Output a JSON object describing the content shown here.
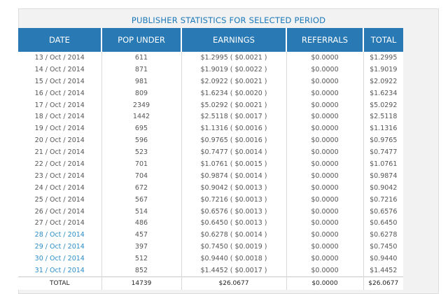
{
  "title": "PUBLISHER STATISTICS FOR SELECTED PERIOD",
  "headers": [
    "DATE",
    "POP UNDER",
    "EARNINGS",
    "REFERRALS",
    "TOTAL"
  ],
  "colors": {
    "header_bg": "#2979b4",
    "title": "#1b78b8",
    "link": "#2a8cc8"
  },
  "rows": [
    {
      "date": "13 / Oct / 2014",
      "pop": "611",
      "earnings": "$1.2995 ( $0.0021 )",
      "referrals": "$0.0000",
      "total": "$1.2995",
      "link": false
    },
    {
      "date": "14 / Oct / 2014",
      "pop": "871",
      "earnings": "$1.9019 ( $0.0022 )",
      "referrals": "$0.0000",
      "total": "$1.9019",
      "link": false
    },
    {
      "date": "15 / Oct / 2014",
      "pop": "981",
      "earnings": "$2.0922 ( $0.0021 )",
      "referrals": "$0.0000",
      "total": "$2.0922",
      "link": false
    },
    {
      "date": "16 / Oct / 2014",
      "pop": "809",
      "earnings": "$1.6234 ( $0.0020 )",
      "referrals": "$0.0000",
      "total": "$1.6234",
      "link": false
    },
    {
      "date": "17 / Oct / 2014",
      "pop": "2349",
      "earnings": "$5.0292 ( $0.0021 )",
      "referrals": "$0.0000",
      "total": "$5.0292",
      "link": false
    },
    {
      "date": "18 / Oct / 2014",
      "pop": "1442",
      "earnings": "$2.5118 ( $0.0017 )",
      "referrals": "$0.0000",
      "total": "$2.5118",
      "link": false
    },
    {
      "date": "19 / Oct / 2014",
      "pop": "695",
      "earnings": "$1.1316 ( $0.0016 )",
      "referrals": "$0.0000",
      "total": "$1.1316",
      "link": false
    },
    {
      "date": "20 / Oct / 2014",
      "pop": "596",
      "earnings": "$0.9765 ( $0.0016 )",
      "referrals": "$0.0000",
      "total": "$0.9765",
      "link": false
    },
    {
      "date": "21 / Oct / 2014",
      "pop": "523",
      "earnings": "$0.7477 ( $0.0014 )",
      "referrals": "$0.0000",
      "total": "$0.7477",
      "link": false
    },
    {
      "date": "22 / Oct / 2014",
      "pop": "701",
      "earnings": "$1.0761 ( $0.0015 )",
      "referrals": "$0.0000",
      "total": "$1.0761",
      "link": false
    },
    {
      "date": "23 / Oct / 2014",
      "pop": "704",
      "earnings": "$0.9874 ( $0.0014 )",
      "referrals": "$0.0000",
      "total": "$0.9874",
      "link": false
    },
    {
      "date": "24 / Oct / 2014",
      "pop": "672",
      "earnings": "$0.9042 ( $0.0013 )",
      "referrals": "$0.0000",
      "total": "$0.9042",
      "link": false
    },
    {
      "date": "25 / Oct / 2014",
      "pop": "567",
      "earnings": "$0.7216 ( $0.0013 )",
      "referrals": "$0.0000",
      "total": "$0.7216",
      "link": false
    },
    {
      "date": "26 / Oct / 2014",
      "pop": "514",
      "earnings": "$0.6576 ( $0.0013 )",
      "referrals": "$0.0000",
      "total": "$0.6576",
      "link": false
    },
    {
      "date": "27 / Oct / 2014",
      "pop": "486",
      "earnings": "$0.6450 ( $0.0013 )",
      "referrals": "$0.0000",
      "total": "$0.6450",
      "link": false
    },
    {
      "date": "28 / Oct / 2014",
      "pop": "457",
      "earnings": "$0.6278 ( $0.0014 )",
      "referrals": "$0.0000",
      "total": "$0.6278",
      "link": true
    },
    {
      "date": "29 / Oct / 2014",
      "pop": "397",
      "earnings": "$0.7450 ( $0.0019 )",
      "referrals": "$0.0000",
      "total": "$0.7450",
      "link": true
    },
    {
      "date": "30 / Oct / 2014",
      "pop": "512",
      "earnings": "$0.9440 ( $0.0018 )",
      "referrals": "$0.0000",
      "total": "$0.9440",
      "link": true
    },
    {
      "date": "31 / Oct / 2014",
      "pop": "852",
      "earnings": "$1.4452 ( $0.0017 )",
      "referrals": "$0.0000",
      "total": "$1.4452",
      "link": true
    }
  ],
  "footer": {
    "label": "TOTAL",
    "pop": "14739",
    "earnings": "$26.0677",
    "referrals": "$0.0000",
    "total": "$26.0677"
  }
}
